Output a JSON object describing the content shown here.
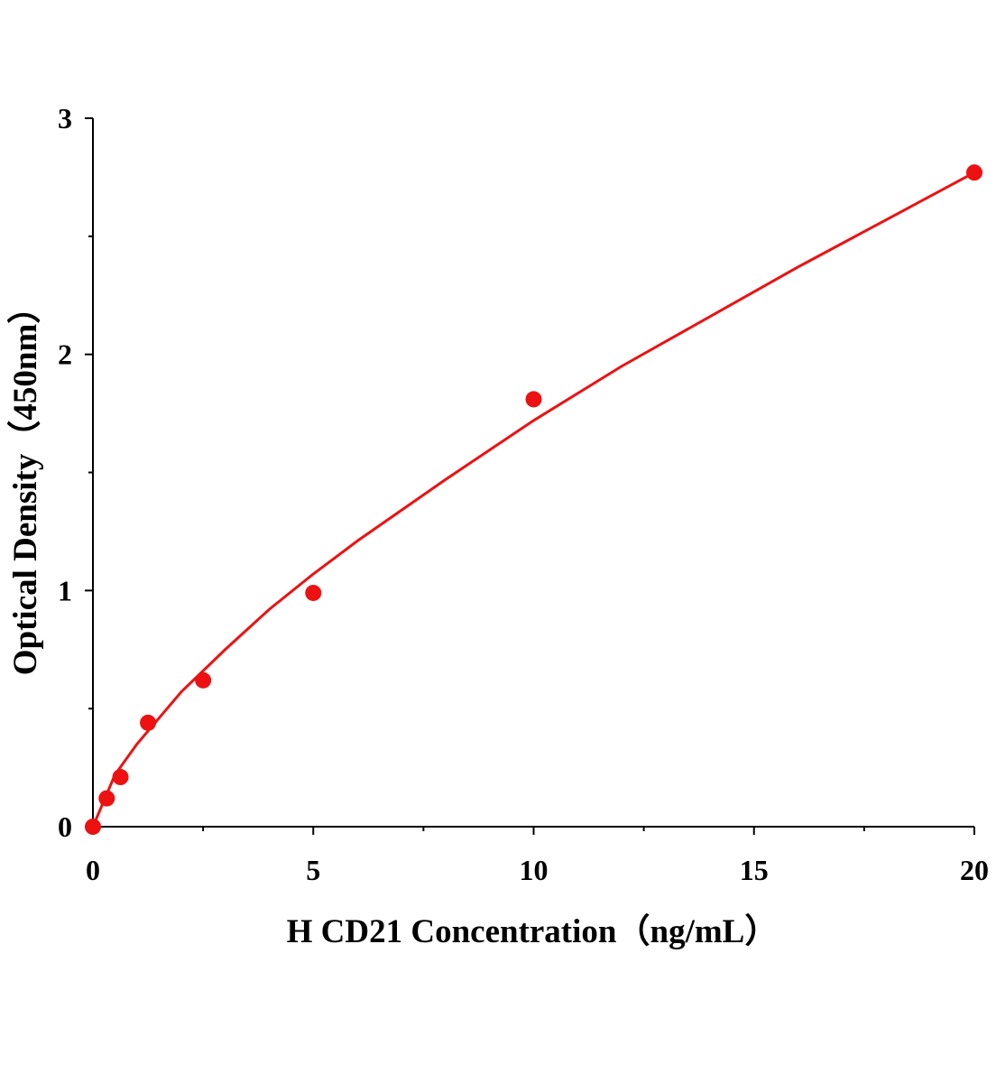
{
  "chart_data": {
    "type": "scatter",
    "x_label": "H CD21 Concentration（ng/mL）",
    "y_label": "Optical Density（450nm）",
    "series": [
      {
        "color": "#ee1111",
        "x": [
          0,
          0.3125,
          0.625,
          1.25,
          2.5,
          5,
          10,
          20
        ],
        "values": [
          0,
          0.12,
          0.21,
          0.44,
          0.62,
          0.99,
          1.81,
          2.77
        ]
      }
    ],
    "fit": {
      "color": "#ee1111",
      "x": [
        0,
        0.5,
        1,
        2,
        3,
        4,
        5,
        6,
        8,
        10,
        12,
        14,
        16,
        18,
        20
      ],
      "values": [
        0,
        0.22,
        0.35,
        0.57,
        0.75,
        0.92,
        1.07,
        1.21,
        1.47,
        1.72,
        1.95,
        2.16,
        2.37,
        2.57,
        2.77
      ]
    },
    "xlim": [
      0,
      20
    ],
    "xticks": [
      0,
      5,
      10,
      15,
      20
    ],
    "xminorticks": [
      2.5,
      7.5,
      12.5,
      17.5
    ],
    "ylim": [
      0,
      3
    ],
    "yticks": [
      0,
      1,
      2,
      3
    ],
    "yminorticks": [
      0.5,
      1.5,
      2.5
    ]
  }
}
